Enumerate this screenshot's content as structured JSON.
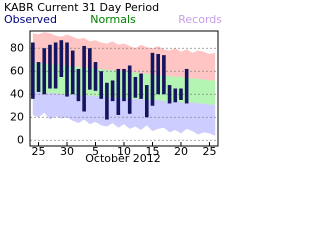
{
  "chart_data": {
    "type": "range",
    "title": "KABR Current 31 Day Period",
    "xlabel": "October 2012",
    "categories": [
      null,
      "25",
      null,
      null,
      null,
      null,
      "30",
      null,
      null,
      null,
      null,
      "5",
      null,
      null,
      null,
      null,
      "10",
      null,
      null,
      null,
      null,
      "15",
      null,
      null,
      null,
      null,
      "20",
      null,
      null,
      null,
      null,
      "25",
      null
    ],
    "series": [
      {
        "name": "Observed",
        "color": "#14145f",
        "label_color": "#00007f",
        "high": [
          85,
          68,
          80,
          83,
          85,
          87,
          85,
          78,
          62,
          82,
          80,
          68,
          60,
          50,
          52,
          62,
          62,
          65,
          55,
          58,
          48,
          76,
          75,
          74,
          48,
          45,
          45,
          62,
          null,
          null,
          null,
          null,
          null
        ],
        "low": [
          36,
          42,
          40,
          45,
          45,
          55,
          38,
          40,
          34,
          25,
          44,
          43,
          36,
          18,
          34,
          22,
          34,
          23,
          37,
          36,
          20,
          30,
          40,
          40,
          32,
          33,
          35,
          32,
          null,
          null,
          null,
          null,
          null
        ]
      },
      {
        "name": "Normals",
        "color": "#b4f5b4",
        "label_color": "#008000",
        "high": [
          68,
          67,
          67,
          66,
          66,
          65,
          65,
          64,
          64,
          63,
          63,
          62,
          62,
          61,
          61,
          60,
          60,
          59,
          59,
          58,
          58,
          57,
          57,
          56,
          56,
          55,
          55,
          54,
          54,
          53,
          53,
          52,
          52
        ],
        "low": [
          42,
          42,
          41,
          41,
          41,
          40,
          40,
          40,
          39,
          39,
          39,
          38,
          38,
          38,
          37,
          37,
          37,
          36,
          36,
          36,
          35,
          35,
          35,
          34,
          34,
          34,
          33,
          33,
          33,
          32,
          32,
          31,
          31
        ]
      },
      {
        "name": "Records",
        "color": "#ffc4c4",
        "low_color": "#cdcdff",
        "label_color": "#c8a0e8",
        "high": [
          93,
          92,
          94,
          93,
          91,
          90,
          92,
          90,
          88,
          89,
          86,
          87,
          85,
          84,
          86,
          83,
          84,
          82,
          80,
          83,
          81,
          80,
          82,
          79,
          78,
          80,
          77,
          79,
          76,
          78,
          77,
          75,
          76
        ],
        "low": [
          22,
          20,
          24,
          18,
          21,
          19,
          20,
          17,
          15,
          18,
          14,
          16,
          13,
          12,
          15,
          11,
          14,
          10,
          12,
          9,
          13,
          8,
          10,
          11,
          7,
          9,
          6,
          10,
          8,
          5,
          7,
          6,
          4
        ]
      }
    ],
    "ylim": [
      -5,
      95
    ],
    "yticks": [
      0,
      20,
      40,
      60,
      80
    ],
    "grid": true
  }
}
